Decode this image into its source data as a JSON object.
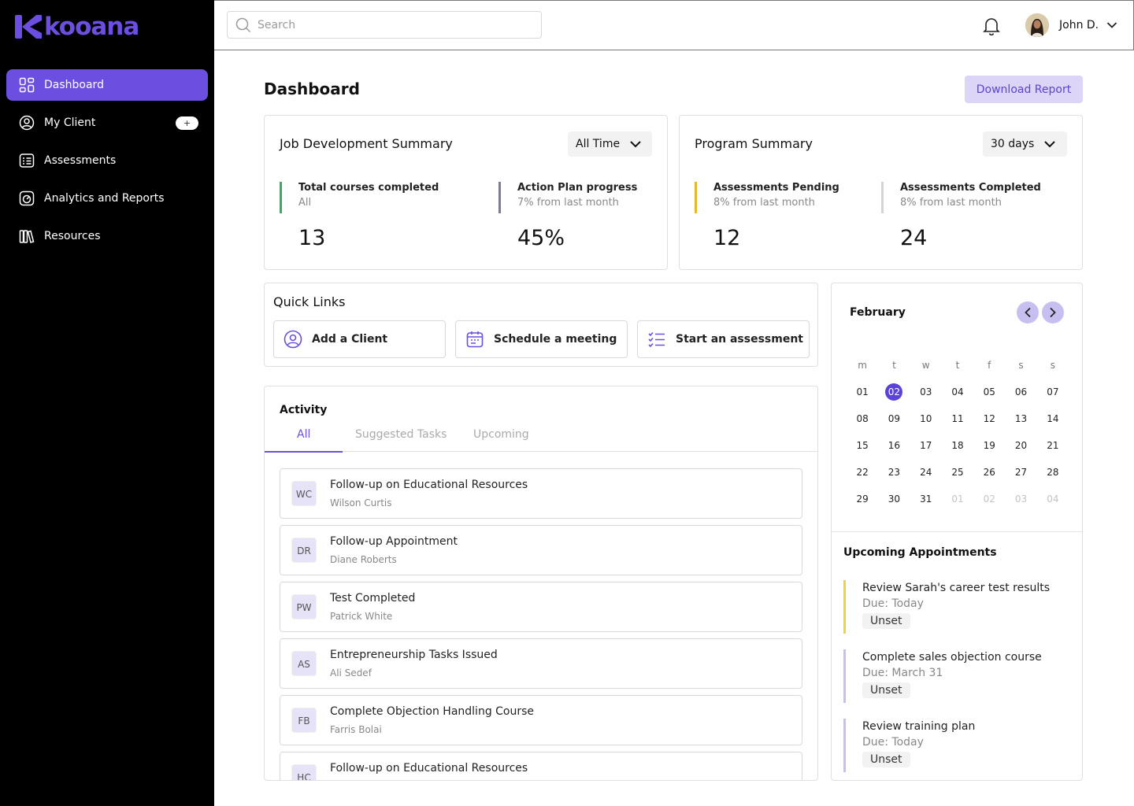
{
  "app": {
    "brand": "kooana"
  },
  "sidebar": {
    "items": [
      {
        "label": "Dashboard",
        "icon": "dashboard-grid-icon",
        "active": true
      },
      {
        "label": "My Client",
        "icon": "user-circle-icon",
        "badge": "+"
      },
      {
        "label": "Assessments",
        "icon": "assessment-list-icon"
      },
      {
        "label": "Analytics and Reports",
        "icon": "analytics-gauge-icon"
      },
      {
        "label": "Resources",
        "icon": "books-icon"
      }
    ]
  },
  "topbar": {
    "search_placeholder": "Search",
    "user_name": "John D."
  },
  "main": {
    "title": "Dashboard",
    "download_label": "Download Report"
  },
  "job_summary": {
    "title": "Job Development Summary",
    "period": "All Time",
    "stats": [
      {
        "label": "Total courses completed",
        "sub": "All",
        "value": "13",
        "color": "#2fb35a"
      },
      {
        "label": "Action Plan progress",
        "sub": "7% from last month",
        "value": "45%",
        "color": "#7c7a96"
      }
    ]
  },
  "program_summary": {
    "title": "Program Summary",
    "period": "30 days",
    "stats": [
      {
        "label": "Assessments Pending",
        "sub": "8% from last month",
        "value": "12",
        "color": "#e8b62c"
      },
      {
        "label": "Assessments Completed",
        "sub": "8% from last month",
        "value": "24",
        "color": "#d4d4d4"
      }
    ]
  },
  "quick_links": {
    "title": "Quick Links",
    "items": [
      {
        "label": "Add a Client",
        "icon": "user-circle-icon"
      },
      {
        "label": "Schedule a meeting",
        "icon": "calendar-icon"
      },
      {
        "label": "Start an assessment",
        "icon": "checklist-icon"
      }
    ]
  },
  "activity": {
    "title": "Activity",
    "tabs": [
      "All",
      "Suggested Tasks",
      "Upcoming"
    ],
    "items": [
      {
        "initials": "WC",
        "title": "Follow-up on Educational Resources",
        "person": "Wilson Curtis"
      },
      {
        "initials": "DR",
        "title": "Follow-up Appointment",
        "person": "Diane Roberts"
      },
      {
        "initials": "PW",
        "title": "Test Completed",
        "person": "Patrick White"
      },
      {
        "initials": "AS",
        "title": "Entrepreneurship Tasks Issued",
        "person": "Ali Sedef"
      },
      {
        "initials": "FB",
        "title": "Complete Objection Handling Course",
        "person": "Farris Bolai"
      },
      {
        "initials": "HC",
        "title": "Follow-up on Educational Resources",
        "person": ""
      }
    ]
  },
  "calendar": {
    "month": "February",
    "weekdays": [
      "m",
      "t",
      "w",
      "t",
      "f",
      "s",
      "s"
    ],
    "weeks": [
      [
        "01",
        "02",
        "03",
        "04",
        "05",
        "06",
        "07"
      ],
      [
        "08",
        "09",
        "10",
        "11",
        "12",
        "13",
        "14"
      ],
      [
        "15",
        "16",
        "17",
        "18",
        "19",
        "20",
        "21"
      ],
      [
        "22",
        "23",
        "24",
        "25",
        "26",
        "27",
        "28"
      ],
      [
        "29",
        "30",
        "31",
        "01",
        "02",
        "03",
        "04"
      ]
    ],
    "selected_day": "02",
    "accent": "#5b43d6"
  },
  "appointments": {
    "title": "Upcoming Appointments",
    "items": [
      {
        "title": "Review Sarah's career test results",
        "due": "Due: Today",
        "tag": "Unset",
        "color": "#f0d43a"
      },
      {
        "title": "Complete sales objection course",
        "due": "Due: March 31",
        "tag": "Unset",
        "color": "#c8bff1"
      },
      {
        "title": "Review training plan",
        "due": "Due: Today",
        "tag": "Unset",
        "color": "#c8bff1"
      }
    ]
  }
}
